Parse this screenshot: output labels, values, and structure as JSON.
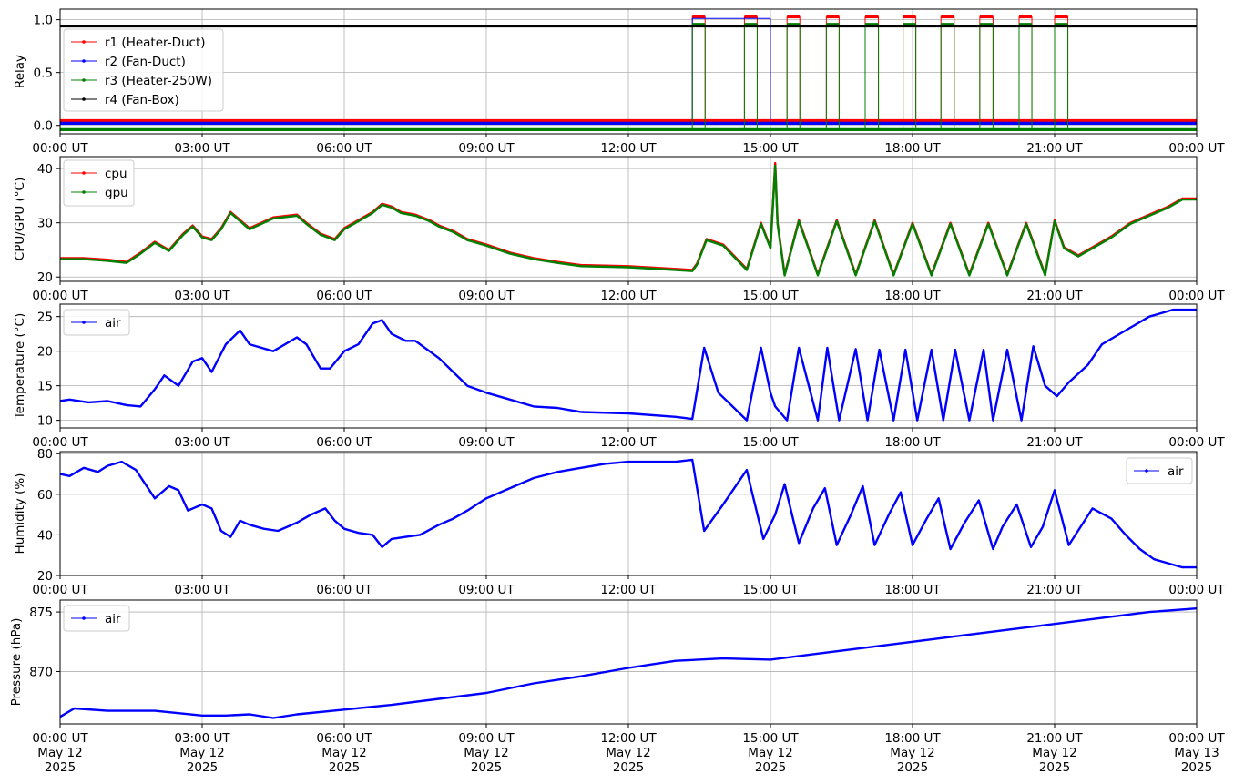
{
  "chart_data": [
    {
      "type": "line",
      "panel": "relay",
      "ylabel": "Relay",
      "ylim": [
        -0.08,
        1.1
      ],
      "yticks": [
        "0.0",
        "0.5",
        "1.0"
      ],
      "ytick_values": [
        0,
        0.5,
        1.0
      ],
      "xlim_hours": [
        0,
        24
      ],
      "xtick_labels": [
        "00:00 UT",
        "03:00 UT",
        "06:00 UT",
        "09:00 UT",
        "12:00 UT",
        "15:00 UT",
        "18:00 UT",
        "21:00 UT",
        "00:00 UT"
      ],
      "grid": true,
      "legend": {
        "placement": "upper-left",
        "entries": [
          "r1 (Heater-Duct)",
          "r2 (Fan-Duct)",
          "r3 (Heater-250W)",
          "r4 (Fan-Box)"
        ]
      },
      "series": [
        {
          "name": "r1 (Heater-Duct)",
          "color": "#ff0000",
          "offset": 0.045,
          "on_intervals_hours": [
            [
              13.35,
              13.62
            ],
            [
              14.45,
              14.72
            ],
            [
              15.35,
              15.62
            ],
            [
              16.18,
              16.45
            ],
            [
              17.0,
              17.28
            ],
            [
              17.8,
              18.07
            ],
            [
              18.6,
              18.88
            ],
            [
              19.42,
              19.7
            ],
            [
              20.25,
              20.52
            ],
            [
              21.0,
              21.28
            ]
          ]
        },
        {
          "name": "r2 (Fan-Duct)",
          "color": "#0000ff",
          "offset": 0.02,
          "on_intervals_hours": [
            [
              13.35,
              15.0
            ]
          ]
        },
        {
          "name": "r3 (Heater-250W)",
          "color": "#008000",
          "offset": -0.04,
          "on_intervals_hours": [
            [
              13.35,
              13.62
            ],
            [
              14.45,
              14.72
            ],
            [
              15.35,
              15.62
            ],
            [
              16.18,
              16.45
            ],
            [
              17.0,
              17.28
            ],
            [
              17.8,
              18.07
            ],
            [
              18.6,
              18.88
            ],
            [
              19.42,
              19.7
            ],
            [
              20.25,
              20.52
            ],
            [
              21.0,
              21.28
            ]
          ]
        },
        {
          "name": "r4 (Fan-Box)",
          "color": "#000000",
          "constant": 0.94
        }
      ]
    },
    {
      "type": "line",
      "panel": "cpu_gpu",
      "ylabel": "CPU/GPU (°C)",
      "ylim": [
        19.2,
        42.2
      ],
      "yticks": [
        "20",
        "30",
        "40"
      ],
      "ytick_values": [
        20,
        30,
        40
      ],
      "xlim_hours": [
        0,
        24
      ],
      "xtick_labels": [
        "00:00 UT",
        "03:00 UT",
        "06:00 UT",
        "09:00 UT",
        "12:00 UT",
        "15:00 UT",
        "18:00 UT",
        "21:00 UT",
        "00:00 UT"
      ],
      "grid": true,
      "legend": {
        "placement": "upper-left",
        "entries": [
          "cpu",
          "gpu"
        ]
      },
      "series": [
        {
          "name": "cpu",
          "color": "#ff0000",
          "x_hours": [
            0,
            0.5,
            1.0,
            1.4,
            1.7,
            2.0,
            2.3,
            2.6,
            2.8,
            3.0,
            3.2,
            3.4,
            3.6,
            3.8,
            4.0,
            4.5,
            5.0,
            5.2,
            5.5,
            5.8,
            6.0,
            6.3,
            6.6,
            6.8,
            7.0,
            7.2,
            7.5,
            7.8,
            8.0,
            8.3,
            8.6,
            9.0,
            9.5,
            10.0,
            10.5,
            11.0,
            12.0,
            13.0,
            13.35,
            13.45,
            13.65,
            14.0,
            14.5,
            14.8,
            15.0,
            15.1,
            15.15,
            15.3,
            15.6,
            16.0,
            16.4,
            16.8,
            17.2,
            17.6,
            18.0,
            18.4,
            18.8,
            19.2,
            19.6,
            20.0,
            20.4,
            20.8,
            21.0,
            21.2,
            21.5,
            21.8,
            22.2,
            22.6,
            23.0,
            23.4,
            23.7,
            24.0
          ],
          "values": [
            23.5,
            23.5,
            23.2,
            22.8,
            24.5,
            26.5,
            25.0,
            28.0,
            29.5,
            27.5,
            27.0,
            29.0,
            32.0,
            30.5,
            29.0,
            31.0,
            31.5,
            30.0,
            28.0,
            27.0,
            29.0,
            30.5,
            32.0,
            33.5,
            33.0,
            32.0,
            31.5,
            30.5,
            29.5,
            28.5,
            27.0,
            26.0,
            24.5,
            23.5,
            22.8,
            22.2,
            22.0,
            21.5,
            21.3,
            22.5,
            27.0,
            26.0,
            21.5,
            30.0,
            25.5,
            41.0,
            30.0,
            20.5,
            30.5,
            20.5,
            30.5,
            20.5,
            30.5,
            20.5,
            30.0,
            20.5,
            30.0,
            20.5,
            30.0,
            20.5,
            30.0,
            20.5,
            30.5,
            25.5,
            24.0,
            25.5,
            27.5,
            30.0,
            31.5,
            33.0,
            34.5,
            34.5
          ]
        },
        {
          "name": "gpu",
          "color": "#008000",
          "x_hours": [
            0,
            0.5,
            1.0,
            1.4,
            1.7,
            2.0,
            2.3,
            2.6,
            2.8,
            3.0,
            3.2,
            3.4,
            3.6,
            3.8,
            4.0,
            4.5,
            5.0,
            5.2,
            5.5,
            5.8,
            6.0,
            6.3,
            6.6,
            6.8,
            7.0,
            7.2,
            7.5,
            7.8,
            8.0,
            8.3,
            8.6,
            9.0,
            9.5,
            10.0,
            10.5,
            11.0,
            12.0,
            13.0,
            13.35,
            13.45,
            13.65,
            14.0,
            14.5,
            14.8,
            15.0,
            15.1,
            15.15,
            15.3,
            15.6,
            16.0,
            16.4,
            16.8,
            17.2,
            17.6,
            18.0,
            18.4,
            18.8,
            19.2,
            19.6,
            20.0,
            20.4,
            20.8,
            21.0,
            21.2,
            21.5,
            21.8,
            22.2,
            22.6,
            23.0,
            23.4,
            23.7,
            24.0
          ],
          "values": [
            23.3,
            23.3,
            23.0,
            22.6,
            24.3,
            26.3,
            24.8,
            27.8,
            29.3,
            27.3,
            26.8,
            28.8,
            31.8,
            30.3,
            28.8,
            30.8,
            31.3,
            29.8,
            27.8,
            26.8,
            28.8,
            30.3,
            31.8,
            33.3,
            32.8,
            31.8,
            31.3,
            30.3,
            29.3,
            28.3,
            26.8,
            25.8,
            24.3,
            23.3,
            22.6,
            22.0,
            21.8,
            21.3,
            21.1,
            22.3,
            26.8,
            25.8,
            21.3,
            29.8,
            25.3,
            40.5,
            29.8,
            20.3,
            30.3,
            20.3,
            30.3,
            20.3,
            30.3,
            20.3,
            29.8,
            20.3,
            29.8,
            20.3,
            29.8,
            20.3,
            29.8,
            20.3,
            30.3,
            25.3,
            23.8,
            25.3,
            27.3,
            29.8,
            31.3,
            32.8,
            34.3,
            34.3
          ]
        }
      ]
    },
    {
      "type": "line",
      "panel": "temperature",
      "ylabel": "Temperature (°C)",
      "ylim": [
        8.9,
        26.8
      ],
      "yticks": [
        "10",
        "15",
        "20",
        "25"
      ],
      "ytick_values": [
        10,
        15,
        20,
        25
      ],
      "xlim_hours": [
        0,
        24
      ],
      "xtick_labels": [
        "00:00 UT",
        "03:00 UT",
        "06:00 UT",
        "09:00 UT",
        "12:00 UT",
        "15:00 UT",
        "18:00 UT",
        "21:00 UT",
        "00:00 UT"
      ],
      "grid": true,
      "legend": {
        "placement": "upper-left",
        "entries": [
          "air"
        ]
      },
      "series": [
        {
          "name": "air",
          "color": "#0000ff",
          "x_hours": [
            0,
            0.2,
            0.6,
            1.0,
            1.4,
            1.7,
            2.0,
            2.2,
            2.5,
            2.8,
            3.0,
            3.2,
            3.5,
            3.8,
            4.0,
            4.5,
            5.0,
            5.2,
            5.5,
            5.7,
            6.0,
            6.3,
            6.6,
            6.8,
            7.0,
            7.3,
            7.5,
            7.8,
            8.0,
            8.3,
            8.6,
            9.0,
            9.5,
            10.0,
            10.5,
            11.0,
            12.0,
            13.0,
            13.35,
            13.6,
            13.9,
            14.2,
            14.5,
            14.8,
            15.0,
            15.1,
            15.35,
            15.6,
            16.0,
            16.2,
            16.45,
            16.8,
            17.05,
            17.3,
            17.6,
            17.85,
            18.1,
            18.4,
            18.65,
            18.9,
            19.2,
            19.5,
            19.7,
            20.0,
            20.3,
            20.55,
            20.8,
            21.05,
            21.3,
            21.7,
            22.0,
            22.5,
            23.0,
            23.5,
            24.0
          ],
          "values": [
            12.8,
            13.0,
            12.6,
            12.8,
            12.2,
            12.0,
            14.5,
            16.5,
            15.0,
            18.5,
            19.0,
            17.0,
            21.0,
            23.0,
            21.0,
            20.0,
            22.0,
            21.0,
            17.5,
            17.5,
            20.0,
            21.0,
            24.0,
            24.5,
            22.5,
            21.5,
            21.5,
            20.0,
            19.0,
            17.0,
            15.0,
            14.0,
            13.0,
            12.0,
            11.8,
            11.2,
            11.0,
            10.5,
            10.2,
            20.5,
            14.0,
            12.0,
            10.0,
            20.5,
            14.0,
            12.0,
            10.0,
            20.5,
            10.0,
            20.5,
            10.0,
            20.3,
            10.0,
            20.2,
            10.0,
            20.2,
            10.0,
            20.2,
            10.0,
            20.2,
            10.0,
            20.2,
            10.0,
            20.2,
            10.0,
            20.7,
            15.0,
            13.5,
            15.5,
            18.0,
            21.0,
            23.0,
            25.0,
            26.0,
            26.0
          ]
        }
      ]
    },
    {
      "type": "line",
      "panel": "humidity",
      "ylabel": "Humidity (%)",
      "ylim": [
        20,
        81
      ],
      "yticks": [
        "20",
        "40",
        "60",
        "80"
      ],
      "ytick_values": [
        20,
        40,
        60,
        80
      ],
      "xlim_hours": [
        0,
        24
      ],
      "xtick_labels": [
        "00:00 UT",
        "03:00 UT",
        "06:00 UT",
        "09:00 UT",
        "12:00 UT",
        "15:00 UT",
        "18:00 UT",
        "21:00 UT",
        "00:00 UT"
      ],
      "grid": true,
      "legend": {
        "placement": "upper-right",
        "entries": [
          "air"
        ]
      },
      "series": [
        {
          "name": "air",
          "color": "#0000ff",
          "x_hours": [
            0,
            0.2,
            0.5,
            0.8,
            1.0,
            1.3,
            1.6,
            1.8,
            2.0,
            2.3,
            2.5,
            2.7,
            3.0,
            3.2,
            3.4,
            3.6,
            3.8,
            4.0,
            4.3,
            4.6,
            5.0,
            5.3,
            5.6,
            5.8,
            6.0,
            6.3,
            6.6,
            6.8,
            7.0,
            7.3,
            7.6,
            8.0,
            8.3,
            8.6,
            9.0,
            9.5,
            10.0,
            10.5,
            11.0,
            11.5,
            12.0,
            12.5,
            13.0,
            13.35,
            13.6,
            14.0,
            14.5,
            14.6,
            14.85,
            15.1,
            15.3,
            15.6,
            15.9,
            16.15,
            16.4,
            16.7,
            16.95,
            17.2,
            17.5,
            17.75,
            18.0,
            18.3,
            18.55,
            18.8,
            19.1,
            19.4,
            19.7,
            19.9,
            20.2,
            20.5,
            20.75,
            21.0,
            21.3,
            21.8,
            22.2,
            22.5,
            22.8,
            23.1,
            23.4,
            23.7,
            24.0
          ],
          "values": [
            70,
            69,
            73,
            71,
            74,
            76,
            72,
            65,
            58,
            64,
            62,
            52,
            55,
            53,
            42,
            39,
            47,
            45,
            43,
            42,
            46,
            50,
            53,
            47,
            43,
            41,
            40,
            34,
            38,
            39,
            40,
            45,
            48,
            52,
            58,
            63,
            68,
            71,
            73,
            75,
            76,
            76,
            76,
            77,
            42,
            55,
            72,
            62,
            38,
            50,
            65,
            36,
            53,
            63,
            35,
            50,
            64,
            35,
            50,
            61,
            35,
            48,
            58,
            33,
            46,
            57,
            33,
            44,
            55,
            34,
            44,
            62,
            35,
            53,
            48,
            40,
            33,
            28,
            26,
            24,
            24
          ]
        }
      ]
    },
    {
      "type": "line",
      "panel": "pressure",
      "ylabel": "Pressure (hPa)",
      "ylim": [
        865.6,
        876.0
      ],
      "yticks": [
        "870",
        "875"
      ],
      "ytick_values": [
        870,
        875
      ],
      "xlim_hours": [
        0,
        24
      ],
      "xtick_labels": [
        "00:00 UT\nMay 12\n2025",
        "03:00 UT\nMay 12\n2025",
        "06:00 UT\nMay 12\n2025",
        "09:00 UT\nMay 12\n2025",
        "12:00 UT\nMay 12\n2025",
        "15:00 UT\nMay 12\n2025",
        "18:00 UT\nMay 12\n2025",
        "21:00 UT\nMay 12\n2025",
        "00:00 UT\nMay 13\n2025"
      ],
      "grid": true,
      "legend": {
        "placement": "upper-left",
        "entries": [
          "air"
        ]
      },
      "series": [
        {
          "name": "air",
          "color": "#0000ff",
          "x_hours": [
            0,
            0.3,
            1,
            2,
            3,
            3.5,
            4,
            4.5,
            5,
            6,
            7,
            8,
            9,
            10,
            11,
            12,
            12.5,
            13,
            14,
            15,
            16,
            17,
            18,
            19,
            20,
            21,
            22,
            23,
            24
          ],
          "values": [
            866.2,
            866.9,
            866.7,
            866.7,
            866.3,
            866.3,
            866.4,
            866.1,
            866.4,
            866.8,
            867.2,
            867.7,
            868.2,
            869.0,
            869.6,
            870.3,
            870.6,
            870.9,
            871.1,
            871.0,
            871.5,
            872.0,
            872.5,
            873.0,
            873.5,
            874.0,
            874.5,
            875.0,
            875.3
          ]
        }
      ]
    }
  ]
}
